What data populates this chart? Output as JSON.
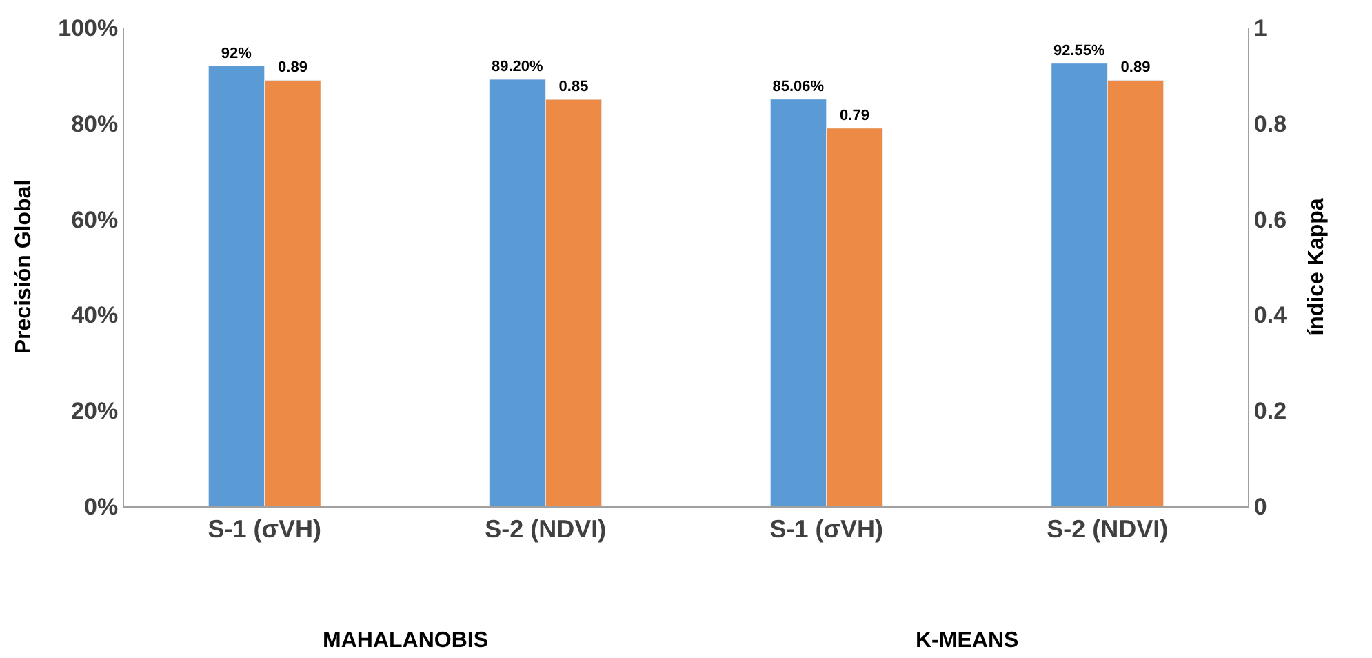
{
  "chart_data": {
    "type": "bar",
    "ylabel": "Precisión Global",
    "y2label": "índice Kappa",
    "categories": [
      "S-1 (σVH)",
      "S-2 (NDVI)",
      "S-1 (σVH)",
      "S-2 (NDVI)"
    ],
    "series": [
      {
        "color": "#5b9bd5",
        "values": [
          92,
          89.2,
          85.06,
          92.55
        ],
        "value_labels": [
          "92%",
          "89.20%",
          "85.06%",
          "92.55%"
        ]
      },
      {
        "color": "#ed8a45",
        "axis": "y2",
        "values": [
          0.89,
          0.85,
          0.79,
          0.89
        ],
        "value_labels": [
          "0.89",
          "0.85",
          "0.79",
          "0.89"
        ]
      }
    ],
    "ylim": [
      0,
      100
    ],
    "yticks": [
      {
        "value": 0,
        "label": "0%"
      },
      {
        "value": 20,
        "label": "20%"
      },
      {
        "value": 40,
        "label": "40%"
      },
      {
        "value": 60,
        "label": "60%"
      },
      {
        "value": 80,
        "label": "80%"
      },
      {
        "value": 100,
        "label": "100%"
      }
    ],
    "y2lim": [
      0,
      1
    ],
    "y2ticks": [
      {
        "value": 0,
        "label": "0"
      },
      {
        "value": 0.2,
        "label": "0.2"
      },
      {
        "value": 0.4,
        "label": "0.4"
      },
      {
        "value": 0.6,
        "label": "0.6"
      },
      {
        "value": 0.8,
        "label": "0.8"
      },
      {
        "value": 1,
        "label": "1"
      }
    ],
    "annotations": [
      "MAHALANOBIS",
      "K-MEANS"
    ]
  }
}
